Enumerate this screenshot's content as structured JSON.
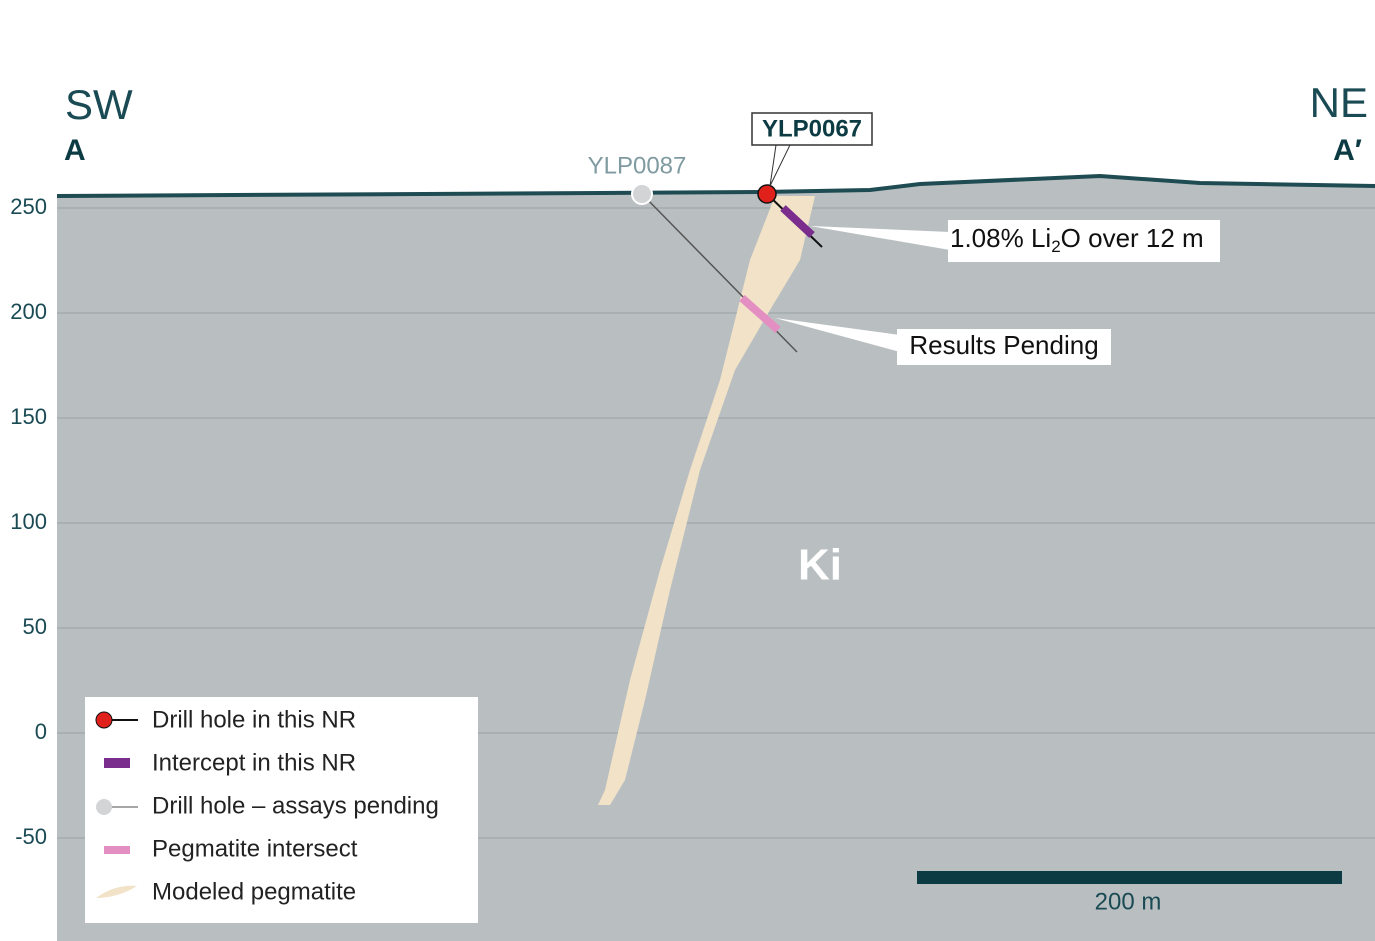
{
  "header": {
    "left_direction": "SW",
    "left_label": "A",
    "right_direction": "NE",
    "right_label": "A′"
  },
  "axis": {
    "ticks": [
      250,
      200,
      150,
      100,
      50,
      0,
      -50
    ]
  },
  "drill_holes": [
    {
      "label": "YLP0087"
    },
    {
      "label": "YLP0067"
    }
  ],
  "callouts": [
    {
      "text_prefix": "1.08% Li",
      "text_subscript": "2",
      "text_suffix": "O over 12 m"
    },
    {
      "text": "Results Pending"
    }
  ],
  "unit_label": "Ki",
  "legend": [
    "Drill hole in this NR",
    "Intercept in this NR",
    "Drill hole – assays pending",
    "Pegmatite intersect",
    "Modeled pegmatite"
  ],
  "scale_bar": "200 m"
}
